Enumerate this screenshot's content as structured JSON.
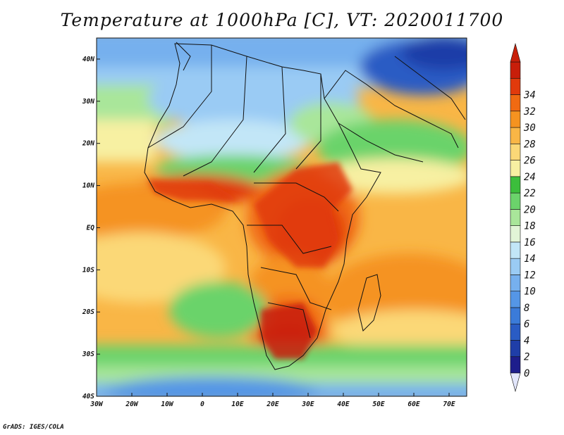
{
  "title": "Temperature at 1000hPa [C], VT: 2020011700",
  "footer": "GrADS: IGES/COLA",
  "map": {
    "projection": "lat-lon",
    "lon_range": [
      -30,
      75
    ],
    "lat_range": [
      -40,
      45
    ],
    "field": "temperature at 1000hPa",
    "units": "C",
    "valid_time": "2020011700",
    "x_tick_labels": [
      "30W",
      "20W",
      "10W",
      "0",
      "10E",
      "20E",
      "30E",
      "40E",
      "50E",
      "60E",
      "70E"
    ],
    "y_tick_labels": [
      "40S",
      "30S",
      "20S",
      "10S",
      "EQ",
      "10N",
      "20N",
      "30N",
      "40N"
    ],
    "overlays": [
      "coastlines",
      "country boundaries"
    ]
  },
  "colorbar": {
    "levels": [
      0,
      2,
      4,
      6,
      8,
      10,
      12,
      14,
      16,
      18,
      20,
      22,
      24,
      26,
      28,
      30,
      32,
      34
    ],
    "labels": [
      "0",
      "2",
      "4",
      "6",
      "8",
      "10",
      "12",
      "14",
      "16",
      "18",
      "20",
      "22",
      "24",
      "26",
      "28",
      "30",
      "32",
      "34"
    ],
    "colors": [
      "#1e1e8c",
      "#1f3ea8",
      "#2a5cc4",
      "#3b7bd9",
      "#5596e6",
      "#76b0ee",
      "#9acbf4",
      "#c2e6f7",
      "#e2f5d7",
      "#a9e69a",
      "#6bd36b",
      "#3cbe3c",
      "#f7f0a2",
      "#fbd877",
      "#f9b646",
      "#f59320",
      "#f06a12",
      "#e13a0c",
      "#c81e0a"
    ],
    "under_color": "#e2e6fb",
    "over_color": "#c8200a"
  }
}
